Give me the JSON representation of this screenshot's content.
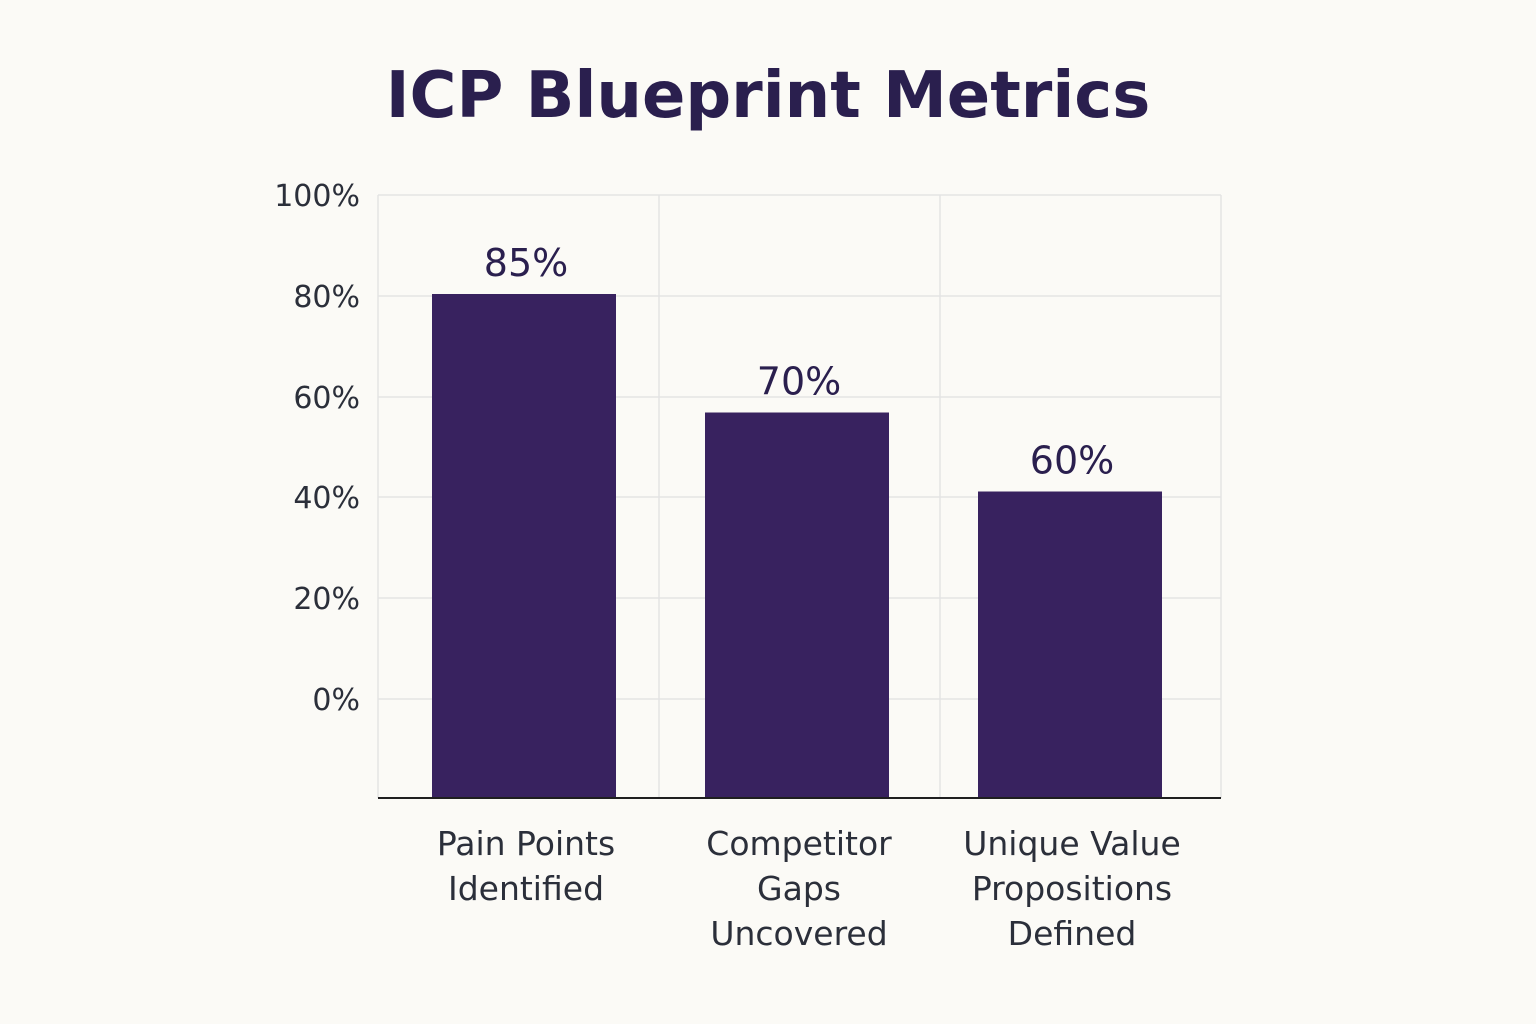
{
  "chart_data": {
    "type": "bar",
    "title": "ICP Blueprint Metrics",
    "categories": [
      [
        "Pain Points",
        "Identified"
      ],
      [
        "Competitor",
        "Gaps",
        "Uncovered"
      ],
      [
        "Unique Value",
        "Propositions",
        "Defined"
      ]
    ],
    "values": [
      85,
      70,
      60
    ],
    "data_labels": [
      "85%",
      "70%",
      "60%"
    ],
    "yticks": [
      "100%",
      "80%",
      "60%",
      "40%",
      "20%",
      "0%"
    ],
    "grid": true,
    "colors": {
      "bar": "#38225f",
      "grid": "#e4e4e4",
      "axis": "#1f1f1f"
    }
  }
}
